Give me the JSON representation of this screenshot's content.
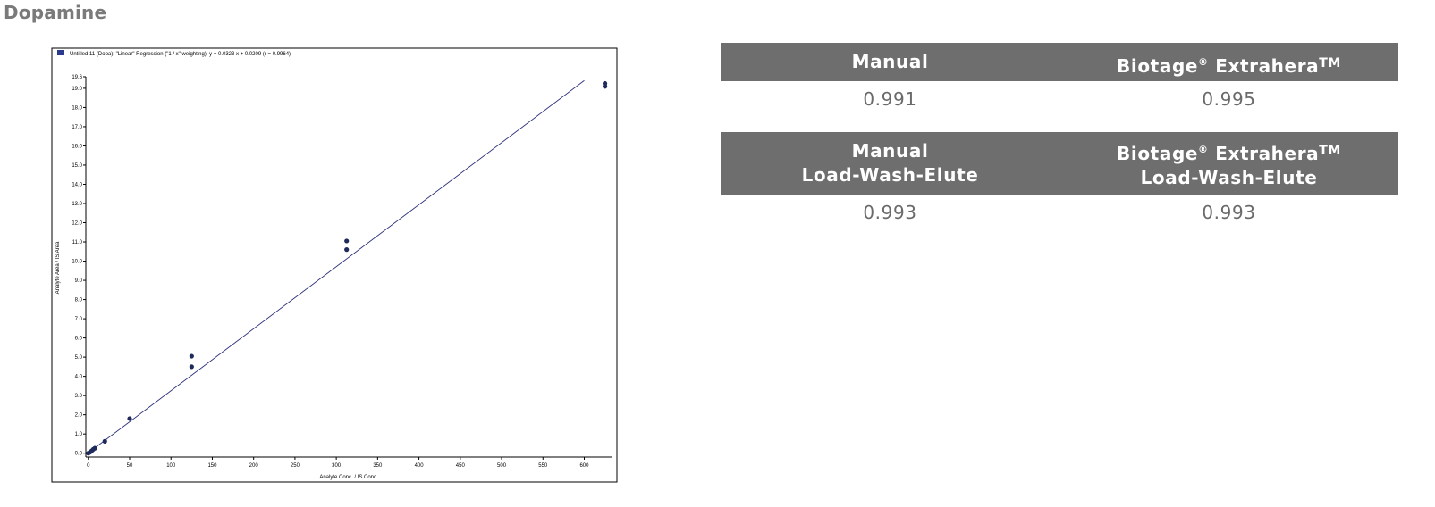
{
  "page": {
    "title": "Dopamine"
  },
  "chart_data": {
    "type": "scatter",
    "legend_text": "Untitled 11 (Dopa): \"Linear\" Regression (\"1 / x\" weighting): y = 0.0323 x + 0.0209 (r = 0.9964)",
    "xlabel": "Analyte Conc. / IS Conc.",
    "ylabel": "Analyte Area / IS Area",
    "xlim": [
      -3,
      633
    ],
    "ylim": [
      -0.2,
      19.6
    ],
    "x_ticks": [
      0,
      50,
      100,
      150,
      200,
      250,
      300,
      350,
      400,
      450,
      500,
      550,
      600
    ],
    "y_ticks": [
      0.0,
      1.0,
      2.0,
      3.0,
      4.0,
      5.0,
      6.0,
      7.0,
      8.0,
      9.0,
      10.0,
      11.0,
      12.0,
      13.0,
      14.0,
      15.0,
      16.0,
      17.0,
      18.0,
      19.0,
      19.6
    ],
    "grid": false,
    "series": [
      {
        "points": [
          {
            "x": 0,
            "y": 0.0
          },
          {
            "x": 2,
            "y": 0.05
          },
          {
            "x": 4,
            "y": 0.12
          },
          {
            "x": 6,
            "y": 0.2
          },
          {
            "x": 8,
            "y": 0.26
          },
          {
            "x": 20,
            "y": 0.62
          },
          {
            "x": 50,
            "y": 1.8
          },
          {
            "x": 125,
            "y": 4.5
          },
          {
            "x": 125,
            "y": 5.05
          },
          {
            "x": 312.5,
            "y": 10.6
          },
          {
            "x": 312.5,
            "y": 11.05
          },
          {
            "x": 625,
            "y": 19.1
          },
          {
            "x": 625,
            "y": 19.25
          }
        ]
      }
    ],
    "fit_line": {
      "slope": 0.0323,
      "intercept": 0.0209,
      "x_range": [
        0,
        600
      ]
    },
    "colors": {
      "points": "#1f2a5c",
      "line": "#2a2f7a",
      "axis": "#000000",
      "legend_box": "#2b3a8c"
    }
  },
  "table1": {
    "headers": [
      {
        "main": "Manual",
        "sup": "",
        "tm": ""
      },
      {
        "main": "Biotage",
        "sup": "®",
        "tail": " Extrahera",
        "tm": "TM"
      }
    ],
    "values": [
      "0.991",
      "0.995"
    ]
  },
  "table2": {
    "headers": [
      {
        "line1": "Manual",
        "line2": "Load-Wash-Elute"
      },
      {
        "main": "Biotage",
        "sup": "®",
        "tail": " Extrahera",
        "tm": "TM",
        "line2": "Load-Wash-Elute"
      }
    ],
    "values": [
      "0.993",
      "0.993"
    ]
  },
  "colors": {
    "header_bg": "#6e6e6e",
    "header_text": "#ffffff",
    "value_text": "#6a6a6a",
    "title_text": "#7a7a7a"
  }
}
